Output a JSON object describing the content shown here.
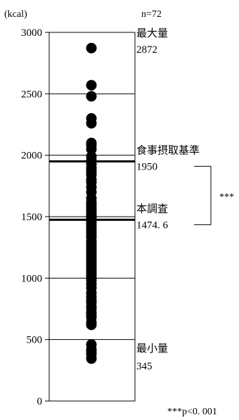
{
  "chart_data": {
    "type": "scatter",
    "y_unit_label": "(kcal)",
    "n_label": "n=72",
    "y_axis": {
      "min": 0,
      "max": 3000,
      "ticks": [
        0,
        500,
        1000,
        1500,
        2000,
        2500,
        3000
      ],
      "tick_labels": [
        "0",
        "500",
        "1000",
        "1500",
        "2000",
        "2500",
        "3000"
      ]
    },
    "grid_y": [
      500,
      1000,
      1500,
      2000,
      2500
    ],
    "points": [
      2872,
      2570,
      2480,
      2300,
      2260,
      2100,
      2080,
      2050,
      1990,
      1960,
      1930,
      1900,
      1880,
      1860,
      1840,
      1800,
      1780,
      1740,
      1700,
      1650,
      1620,
      1600,
      1580,
      1560,
      1550,
      1530,
      1510,
      1500,
      1490,
      1470,
      1450,
      1430,
      1410,
      1390,
      1370,
      1350,
      1330,
      1300,
      1280,
      1260,
      1240,
      1220,
      1200,
      1180,
      1160,
      1140,
      1120,
      1100,
      1080,
      1060,
      1040,
      1020,
      1000,
      980,
      950,
      920,
      880,
      850,
      820,
      800,
      770,
      750,
      720,
      700,
      680,
      640,
      620,
      460,
      420,
      400,
      380,
      345
    ],
    "annotations": [
      {
        "key": "max",
        "value": 2872,
        "label": "最大量",
        "value_label": "2872"
      },
      {
        "key": "standard",
        "value": 1950,
        "label": "食事摂取基準",
        "value_label": "1950",
        "thick_line": true
      },
      {
        "key": "survey",
        "value": 1474.6,
        "label": "本調査",
        "value_label": "1474. 6",
        "thick_line": true
      },
      {
        "key": "min",
        "value": 345,
        "label": "最小量",
        "value_label": "345"
      }
    ],
    "significance_label": "***",
    "footnote": "***p<0. 001"
  }
}
